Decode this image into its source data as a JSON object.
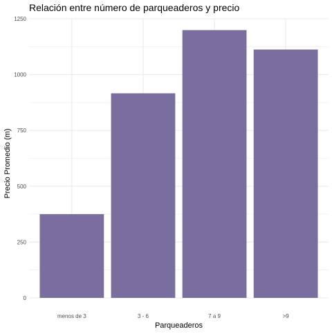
{
  "chart_data": {
    "type": "bar",
    "title": "Relación entre número de parqueaderos y precio",
    "xlabel": "Parqueaderos",
    "ylabel": "Precio Promedio (m)",
    "categories": [
      "menos de 3",
      "3 - 6",
      "7 a 9",
      ">9"
    ],
    "values": [
      375,
      916,
      1199,
      1112
    ],
    "ylim": [
      0,
      1250
    ],
    "yticks": [
      0,
      250,
      500,
      750,
      1000,
      1250
    ],
    "ytick_labels": [
      "0",
      "250",
      "500",
      "750",
      "1000",
      "1250"
    ],
    "grid": true,
    "legend": "none",
    "bar_color": "#7a6e9e",
    "grid_color": "#ebebeb"
  }
}
